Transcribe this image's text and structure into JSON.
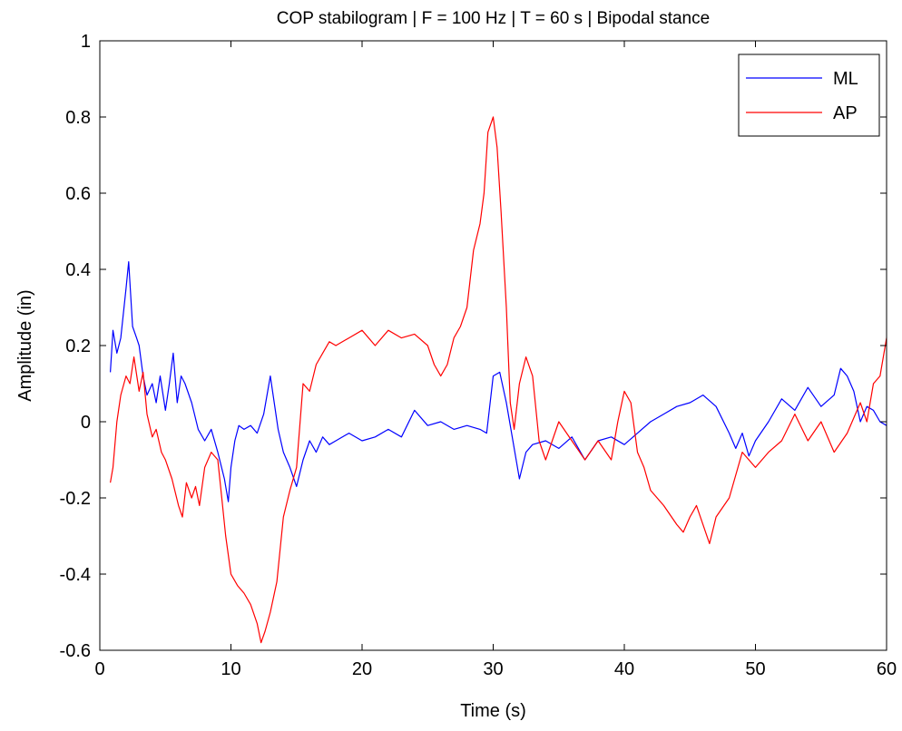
{
  "chart_data": {
    "type": "line",
    "title": "COP stabilogram | F = 100 Hz | T = 60 s | Bipodal stance",
    "xlabel": "Time (s)",
    "ylabel": "Amplitude (in)",
    "xlim": [
      0,
      60
    ],
    "ylim": [
      -0.6,
      1.0
    ],
    "x_ticks": [
      0,
      10,
      20,
      30,
      40,
      50,
      60
    ],
    "y_ticks": [
      -0.6,
      -0.4,
      -0.2,
      0,
      0.2,
      0.4,
      0.6,
      0.8,
      1
    ],
    "x_tick_labels": [
      "0",
      "10",
      "20",
      "30",
      "40",
      "50",
      "60"
    ],
    "y_tick_labels": [
      "-0.6",
      "-0.4",
      "-0.2",
      "0",
      "0.2",
      "0.4",
      "0.6",
      "0.8",
      "1"
    ],
    "grid": false,
    "legend_position": "top-right",
    "series": [
      {
        "name": "ML",
        "color": "#0000ff",
        "x": [
          0.8,
          1.0,
          1.3,
          1.6,
          2.0,
          2.2,
          2.5,
          2.8,
          3.0,
          3.3,
          3.6,
          4.0,
          4.3,
          4.6,
          5.0,
          5.3,
          5.6,
          5.9,
          6.2,
          6.5,
          7.0,
          7.5,
          8.0,
          8.5,
          9.0,
          9.5,
          9.8,
          10.0,
          10.3,
          10.6,
          11.0,
          11.5,
          12.0,
          12.5,
          13.0,
          13.3,
          13.6,
          14.0,
          14.5,
          15.0,
          15.5,
          16.0,
          16.5,
          17.0,
          17.5,
          18.0,
          19.0,
          20.0,
          21.0,
          22.0,
          23.0,
          24.0,
          25.0,
          26.0,
          27.0,
          28.0,
          29.0,
          29.5,
          30.0,
          30.5,
          31.0,
          31.5,
          32.0,
          32.5,
          33.0,
          34.0,
          35.0,
          36.0,
          37.0,
          38.0,
          39.0,
          40.0,
          41.0,
          42.0,
          43.0,
          44.0,
          45.0,
          46.0,
          47.0,
          48.0,
          48.5,
          49.0,
          49.5,
          50.0,
          51.0,
          52.0,
          53.0,
          54.0,
          55.0,
          56.0,
          56.5,
          57.0,
          57.5,
          58.0,
          58.5,
          59.0,
          59.5,
          60.0
        ],
        "values": [
          0.13,
          0.24,
          0.18,
          0.22,
          0.35,
          0.42,
          0.25,
          0.22,
          0.2,
          0.12,
          0.07,
          0.1,
          0.05,
          0.12,
          0.03,
          0.1,
          0.18,
          0.05,
          0.12,
          0.1,
          0.05,
          -0.02,
          -0.05,
          -0.02,
          -0.08,
          -0.15,
          -0.21,
          -0.12,
          -0.05,
          -0.01,
          -0.02,
          -0.01,
          -0.03,
          0.02,
          0.12,
          0.05,
          -0.02,
          -0.08,
          -0.12,
          -0.17,
          -0.1,
          -0.05,
          -0.08,
          -0.04,
          -0.06,
          -0.05,
          -0.03,
          -0.05,
          -0.04,
          -0.02,
          -0.04,
          0.03,
          -0.01,
          0.0,
          -0.02,
          -0.01,
          -0.02,
          -0.03,
          0.12,
          0.13,
          0.05,
          -0.05,
          -0.15,
          -0.08,
          -0.06,
          -0.05,
          -0.07,
          -0.04,
          -0.1,
          -0.05,
          -0.04,
          -0.06,
          -0.03,
          0.0,
          0.02,
          0.04,
          0.05,
          0.07,
          0.04,
          -0.03,
          -0.07,
          -0.03,
          -0.09,
          -0.05,
          0.0,
          0.06,
          0.03,
          0.09,
          0.04,
          0.07,
          0.14,
          0.12,
          0.08,
          0.0,
          0.04,
          0.03,
          0.0,
          -0.01
        ]
      },
      {
        "name": "AP",
        "color": "#ff0000",
        "x": [
          0.8,
          1.0,
          1.3,
          1.6,
          2.0,
          2.3,
          2.6,
          3.0,
          3.3,
          3.6,
          4.0,
          4.3,
          4.7,
          5.0,
          5.5,
          6.0,
          6.3,
          6.6,
          7.0,
          7.3,
          7.6,
          8.0,
          8.5,
          9.0,
          9.3,
          9.6,
          10.0,
          10.5,
          11.0,
          11.5,
          12.0,
          12.3,
          12.6,
          13.0,
          13.5,
          14.0,
          14.5,
          15.0,
          15.5,
          16.0,
          16.5,
          17.0,
          17.5,
          18.0,
          19.0,
          20.0,
          21.0,
          22.0,
          23.0,
          24.0,
          25.0,
          25.5,
          26.0,
          26.5,
          27.0,
          27.5,
          28.0,
          28.5,
          29.0,
          29.3,
          29.6,
          30.0,
          30.3,
          30.6,
          31.0,
          31.3,
          31.6,
          32.0,
          32.5,
          33.0,
          33.5,
          34.0,
          35.0,
          36.0,
          37.0,
          38.0,
          39.0,
          39.5,
          40.0,
          40.5,
          41.0,
          41.5,
          42.0,
          43.0,
          44.0,
          44.5,
          45.0,
          45.5,
          46.0,
          46.5,
          47.0,
          48.0,
          49.0,
          50.0,
          51.0,
          52.0,
          53.0,
          54.0,
          55.0,
          56.0,
          57.0,
          58.0,
          58.5,
          59.0,
          59.5,
          60.0
        ],
        "values": [
          -0.16,
          -0.12,
          0.0,
          0.07,
          0.12,
          0.1,
          0.17,
          0.08,
          0.13,
          0.02,
          -0.04,
          -0.02,
          -0.08,
          -0.1,
          -0.15,
          -0.22,
          -0.25,
          -0.16,
          -0.2,
          -0.17,
          -0.22,
          -0.12,
          -0.08,
          -0.1,
          -0.2,
          -0.3,
          -0.4,
          -0.43,
          -0.45,
          -0.48,
          -0.53,
          -0.58,
          -0.55,
          -0.5,
          -0.42,
          -0.25,
          -0.18,
          -0.12,
          0.1,
          0.08,
          0.15,
          0.18,
          0.21,
          0.2,
          0.22,
          0.24,
          0.2,
          0.24,
          0.22,
          0.23,
          0.2,
          0.15,
          0.12,
          0.15,
          0.22,
          0.25,
          0.3,
          0.45,
          0.52,
          0.6,
          0.76,
          0.8,
          0.72,
          0.55,
          0.3,
          0.05,
          -0.02,
          0.1,
          0.17,
          0.12,
          -0.05,
          -0.1,
          0.0,
          -0.05,
          -0.1,
          -0.05,
          -0.1,
          0.0,
          0.08,
          0.05,
          -0.08,
          -0.12,
          -0.18,
          -0.22,
          -0.27,
          -0.29,
          -0.25,
          -0.22,
          -0.27,
          -0.32,
          -0.25,
          -0.2,
          -0.08,
          -0.12,
          -0.08,
          -0.05,
          0.02,
          -0.05,
          0.0,
          -0.08,
          -0.03,
          0.05,
          0.0,
          0.1,
          0.12,
          0.22
        ]
      }
    ]
  }
}
